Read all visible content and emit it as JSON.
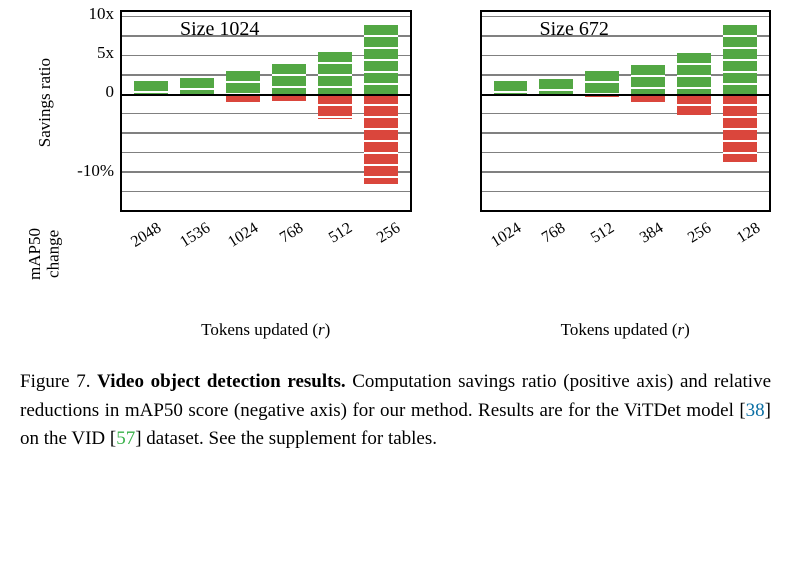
{
  "chart": {
    "type": "bar",
    "y_top_label": "Savings ratio",
    "y_bottom_label": "mAP50\nchange",
    "x_label_prefix": "Tokens updated (",
    "x_label_var": "r",
    "x_label_suffix": ")",
    "yticks": [
      {
        "label": "10x",
        "value": 10
      },
      {
        "label": "5x",
        "value": 5
      },
      {
        "label": "0",
        "value": 0
      },
      {
        "label": "-10%",
        "value": -10
      }
    ],
    "y_max": 10.5,
    "y_min": -15,
    "gridline_spacing": 2.5,
    "colors": {
      "pos_bar": "#53a744",
      "neg_bar": "#da463c",
      "grid": "#808080",
      "axis": "#000000",
      "background": "#ffffff"
    },
    "font_sizes": {
      "axis_label": 17,
      "tick": 17,
      "subtitle": 20,
      "caption": 19
    },
    "panels": [
      {
        "subtitle": "Size 1024",
        "categories": [
          "2048",
          "1536",
          "1024",
          "768",
          "512",
          "256"
        ],
        "pos_values": [
          1.6,
          1.95,
          2.95,
          3.8,
          5.3,
          8.8
        ],
        "neg_values": [
          -0.05,
          -0.05,
          -1.05,
          -1.0,
          -3.3,
          -11.7
        ]
      },
      {
        "subtitle": "Size 672",
        "categories": [
          "1024",
          "768",
          "512",
          "384",
          "256",
          "128"
        ],
        "pos_values": [
          1.6,
          1.9,
          2.9,
          3.7,
          5.2,
          8.8
        ],
        "neg_values": [
          -0.05,
          -0.05,
          -0.5,
          -1.05,
          -2.8,
          -8.8
        ]
      }
    ]
  },
  "caption": {
    "fig_label": "Figure 7.",
    "title": "Video object detection results.",
    "body_1": " Computation savings ratio (positive axis) and relative reductions in mAP50 score (negative axis) for our method. Results are for the ViTDet model [",
    "cite1": "38",
    "body_2": "] on the VID [",
    "cite2": "57",
    "body_3": "] dataset. See the supplement for tables."
  }
}
